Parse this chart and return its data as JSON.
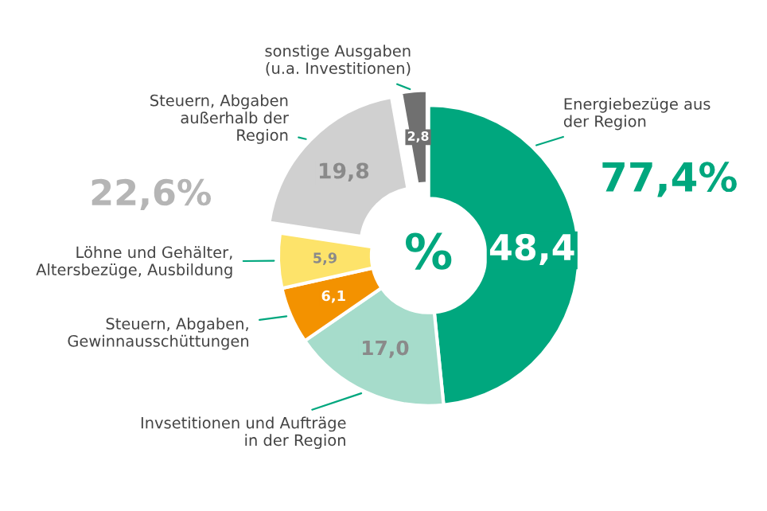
{
  "chart_data": {
    "type": "donut",
    "categories": [
      "Energiebezüge aus\nder Region",
      "Invsetitionen und Aufträge\nin der Region",
      "Steuern, Abgaben,\nGewinnausschüttungen",
      "Löhne und Gehälter,\nAltersbezüge, Ausbildung",
      "Steuern, Abgaben\naußerhalb der\nRegion",
      "sonstige Ausgaben\n(u.a. Investitionen)"
    ],
    "values": [
      48.4,
      17.0,
      6.1,
      5.9,
      19.8,
      2.8
    ],
    "colors": [
      "#00a77e",
      "#a6dccb",
      "#f39200",
      "#fde36a",
      "#d0d0d0",
      "#707070"
    ],
    "value_labels": [
      "48,4",
      "17,0",
      "6,1",
      "5,9",
      "19,8",
      "2,8"
    ],
    "annotations": [
      "77,4%",
      "22,6%",
      "%"
    ]
  }
}
